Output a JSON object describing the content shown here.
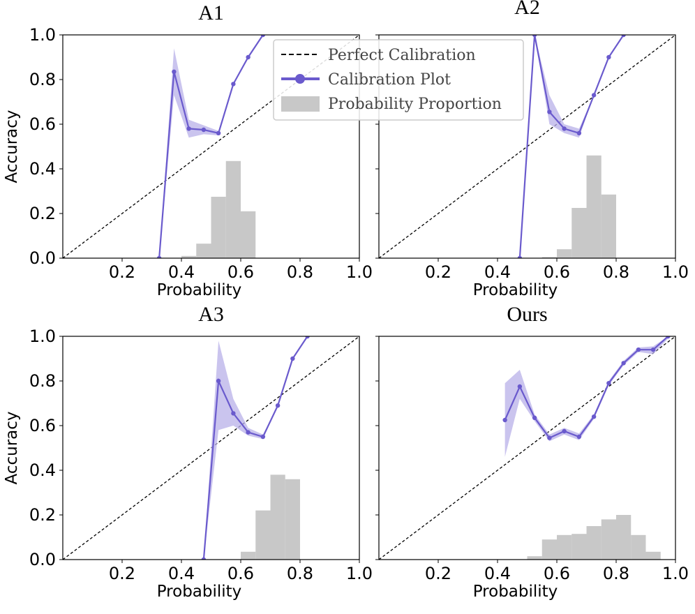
{
  "figure_labels": {
    "x_axis": "Probability",
    "y_axis": "Accuracy"
  },
  "legend": {
    "location": "upper center",
    "entries": [
      {
        "label": "Perfect Calibration",
        "kind": "dashed-line"
      },
      {
        "label": "Calibration Plot",
        "kind": "marker-line"
      },
      {
        "label": "Probability Proportion",
        "kind": "patch"
      }
    ]
  },
  "colors": {
    "calibration": "#6a5acd",
    "band": "#b8b0e8",
    "hist": "#c8c8c8",
    "diagonal": "#000000"
  },
  "chart_data": [
    {
      "type": "line",
      "title": "A1",
      "xlabel": "Probability",
      "ylabel": "Accuracy",
      "xlim": [
        0.0,
        1.0
      ],
      "ylim": [
        0.0,
        1.0
      ],
      "xticks": [
        "0.2",
        "0.4",
        "0.6",
        "0.8",
        "1.0"
      ],
      "yticks": [
        "0.0",
        "0.2",
        "0.4",
        "0.6",
        "0.8",
        "1.0"
      ],
      "calibration": {
        "x": [
          0.325,
          0.375,
          0.425,
          0.475,
          0.525,
          0.575,
          0.625,
          0.675
        ],
        "y": [
          0.0,
          0.835,
          0.58,
          0.575,
          0.56,
          0.78,
          0.9,
          1.0
        ],
        "y_low": [
          0.0,
          0.73,
          0.54,
          0.555,
          0.55,
          0.78,
          0.9,
          1.0
        ],
        "y_high": [
          0.0,
          0.94,
          0.62,
          0.595,
          0.57,
          0.78,
          0.9,
          1.0
        ]
      },
      "histogram": {
        "bin_edges": [
          0.4,
          0.45,
          0.5,
          0.55,
          0.6,
          0.65
        ],
        "values": [
          0.01,
          0.065,
          0.275,
          0.435,
          0.21
        ]
      }
    },
    {
      "type": "line",
      "title": "A2",
      "xlabel": "Probability",
      "ylabel": "",
      "xlim": [
        0.0,
        1.0
      ],
      "ylim": [
        0.0,
        1.0
      ],
      "xticks": [
        "0.2",
        "0.4",
        "0.6",
        "0.8",
        "1.0"
      ],
      "yticks": [],
      "calibration": {
        "x": [
          0.475,
          0.525,
          0.575,
          0.625,
          0.675,
          0.725,
          0.775,
          0.825
        ],
        "y": [
          0.0,
          1.0,
          0.655,
          0.58,
          0.56,
          0.73,
          0.9,
          1.0
        ],
        "y_low": [
          0.0,
          1.0,
          0.6,
          0.56,
          0.54,
          0.73,
          0.9,
          1.0
        ],
        "y_high": [
          0.0,
          1.0,
          0.73,
          0.6,
          0.58,
          0.73,
          0.9,
          1.0
        ]
      },
      "histogram": {
        "bin_edges": [
          0.55,
          0.6,
          0.65,
          0.7,
          0.75,
          0.8
        ],
        "values": [
          0.005,
          0.04,
          0.225,
          0.46,
          0.285
        ]
      }
    },
    {
      "type": "line",
      "title": "A3",
      "xlabel": "Probability",
      "ylabel": "Accuracy",
      "xlim": [
        0.0,
        1.0
      ],
      "ylim": [
        0.0,
        1.0
      ],
      "xticks": [
        "0.2",
        "0.4",
        "0.6",
        "0.8",
        "1.0"
      ],
      "yticks": [
        "0.0",
        "0.2",
        "0.4",
        "0.6",
        "0.8",
        "1.0"
      ],
      "calibration": {
        "x": [
          0.475,
          0.525,
          0.575,
          0.625,
          0.675,
          0.725,
          0.775,
          0.825
        ],
        "y": [
          0.0,
          0.8,
          0.655,
          0.57,
          0.55,
          0.69,
          0.9,
          1.0
        ],
        "y_low": [
          0.0,
          0.58,
          0.6,
          0.555,
          0.54,
          0.69,
          0.9,
          1.0
        ],
        "y_high": [
          0.0,
          0.98,
          0.72,
          0.59,
          0.56,
          0.69,
          0.9,
          1.0
        ]
      },
      "histogram": {
        "bin_edges": [
          0.6,
          0.65,
          0.7,
          0.75,
          0.8
        ],
        "values": [
          0.035,
          0.22,
          0.38,
          0.36
        ]
      }
    },
    {
      "type": "line",
      "title": "Ours",
      "xlabel": "Probability",
      "ylabel": "",
      "xlim": [
        0.0,
        1.0
      ],
      "ylim": [
        0.0,
        1.0
      ],
      "xticks": [
        "0.2",
        "0.4",
        "0.6",
        "0.8",
        "1.0"
      ],
      "yticks": [],
      "calibration": {
        "x": [
          0.425,
          0.475,
          0.525,
          0.575,
          0.625,
          0.675,
          0.725,
          0.775,
          0.825,
          0.875,
          0.925,
          0.975
        ],
        "y": [
          0.625,
          0.775,
          0.635,
          0.545,
          0.575,
          0.55,
          0.64,
          0.79,
          0.88,
          0.94,
          0.94,
          1.0
        ],
        "y_low": [
          0.46,
          0.72,
          0.62,
          0.53,
          0.56,
          0.535,
          0.63,
          0.78,
          0.87,
          0.93,
          0.92,
          0.99
        ],
        "y_high": [
          0.79,
          0.85,
          0.65,
          0.56,
          0.59,
          0.565,
          0.65,
          0.8,
          0.89,
          0.95,
          0.955,
          1.0
        ]
      },
      "histogram": {
        "bin_edges": [
          0.5,
          0.55,
          0.6,
          0.65,
          0.7,
          0.75,
          0.8,
          0.85,
          0.9,
          0.95
        ],
        "values": [
          0.015,
          0.09,
          0.11,
          0.115,
          0.15,
          0.18,
          0.2,
          0.11,
          0.035
        ]
      }
    }
  ]
}
